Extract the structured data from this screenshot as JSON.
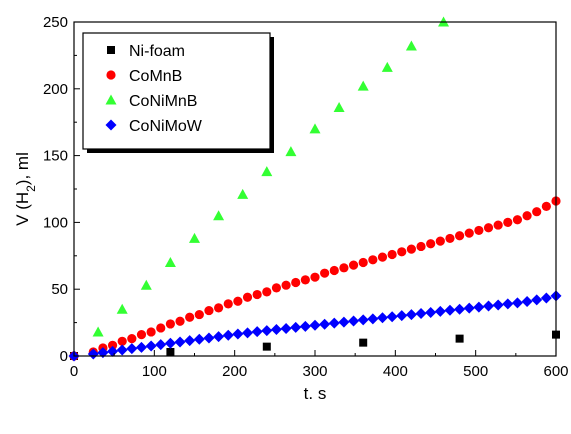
{
  "chart_data": {
    "type": "scatter",
    "title": "",
    "xlabel": "t. s",
    "ylabel": "V (H2), ml",
    "ylabel_parts": {
      "prefix": "V (H",
      "subscript": "2",
      "suffix": "), ml"
    },
    "xlim": [
      0,
      600
    ],
    "ylim": [
      0,
      250
    ],
    "xticks": [
      0,
      100,
      200,
      300,
      400,
      500,
      600
    ],
    "yticks": [
      0,
      50,
      100,
      150,
      200,
      250
    ],
    "grid": false,
    "legend_position": "top-left",
    "series": [
      {
        "name": "Ni-foam",
        "marker": "square",
        "color": "#000000",
        "x": [
          0,
          120,
          240,
          360,
          480,
          600
        ],
        "y": [
          0,
          3,
          7,
          10,
          13,
          16
        ]
      },
      {
        "name": "CoMnB",
        "marker": "circle",
        "color": "#ff0000",
        "x": [
          0,
          24,
          36,
          48,
          60,
          72,
          84,
          96,
          108,
          120,
          132,
          144,
          156,
          168,
          180,
          192,
          204,
          216,
          228,
          240,
          252,
          264,
          276,
          288,
          300,
          312,
          324,
          336,
          348,
          360,
          372,
          384,
          396,
          408,
          420,
          432,
          444,
          456,
          468,
          480,
          492,
          504,
          516,
          528,
          540,
          552,
          564,
          576,
          588,
          600
        ],
        "y": [
          0,
          3,
          6,
          8,
          11,
          13,
          16,
          18,
          21,
          24,
          26,
          29,
          31,
          34,
          36,
          39,
          41,
          44,
          46,
          48,
          51,
          53,
          55,
          57,
          59,
          62,
          64,
          66,
          68,
          70,
          72,
          74,
          76,
          78,
          80,
          82,
          84,
          86,
          88,
          90,
          92,
          94,
          96,
          98,
          100,
          102,
          105,
          108,
          112,
          116
        ]
      },
      {
        "name": "CoNiMnB",
        "marker": "triangle",
        "color": "#33ff33",
        "x": [
          30,
          60,
          90,
          120,
          150,
          180,
          210,
          240,
          270,
          300,
          330,
          360,
          390,
          420,
          460
        ],
        "y": [
          18,
          35,
          53,
          70,
          88,
          105,
          121,
          138,
          153,
          170,
          186,
          202,
          216,
          232,
          250
        ]
      },
      {
        "name": "CoNiMoW",
        "marker": "diamond",
        "color": "#0000ff",
        "x": [
          0,
          24,
          36,
          48,
          60,
          72,
          84,
          96,
          108,
          120,
          132,
          144,
          156,
          168,
          180,
          192,
          204,
          216,
          228,
          240,
          252,
          264,
          276,
          288,
          300,
          312,
          324,
          336,
          348,
          360,
          372,
          384,
          396,
          408,
          420,
          432,
          444,
          456,
          468,
          480,
          492,
          504,
          516,
          528,
          540,
          552,
          564,
          576,
          588,
          600
        ],
        "y": [
          0,
          1.5,
          2.5,
          3.5,
          4.5,
          5.5,
          6.5,
          7.5,
          8.5,
          9.5,
          10.5,
          11.5,
          12.5,
          13.5,
          14.5,
          15.5,
          16.5,
          17.3,
          18.2,
          19,
          19.8,
          20.6,
          21.4,
          22.2,
          23,
          23.8,
          24.6,
          25.4,
          26.2,
          27,
          27.8,
          28.6,
          29.4,
          30.2,
          31,
          31.8,
          32.6,
          33.4,
          34.2,
          35,
          35.8,
          36.6,
          37.4,
          38.2,
          39,
          39.8,
          40.8,
          42,
          43.4,
          45
        ]
      }
    ]
  }
}
